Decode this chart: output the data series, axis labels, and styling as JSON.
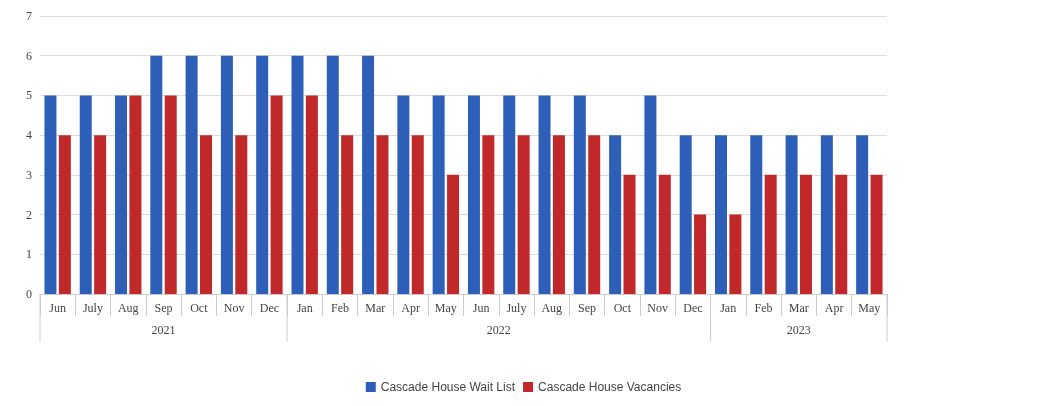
{
  "chart_data": {
    "type": "bar",
    "categories": [
      "Jun",
      "July",
      "Aug",
      "Sep",
      "Oct",
      "Nov",
      "Dec",
      "Jan",
      "Feb",
      "Mar",
      "Apr",
      "May",
      "Jun",
      "July",
      "Aug",
      "Sep",
      "Oct",
      "Nov",
      "Dec",
      "Jan",
      "Feb",
      "Mar",
      "Apr",
      "May"
    ],
    "series": [
      {
        "name": "Cascade House Wait List",
        "color": "#2e5fb8",
        "values": [
          5,
          5,
          5,
          6,
          6,
          6,
          6,
          6,
          6,
          6,
          5,
          5,
          5,
          5,
          5,
          5,
          4,
          5,
          4,
          4,
          4,
          4,
          4,
          4
        ]
      },
      {
        "name": "Cascade House Vacancies",
        "color": "#c0282a",
        "values": [
          4,
          4,
          5,
          5,
          4,
          4,
          5,
          5,
          4,
          4,
          4,
          3,
          4,
          4,
          4,
          4,
          3,
          3,
          2,
          2,
          3,
          3,
          3,
          3
        ]
      }
    ],
    "annotations": [
      "2021",
      "2022",
      "2023"
    ],
    "ylim": [
      0,
      7
    ],
    "yticks": [
      0,
      1,
      2,
      3,
      4,
      5,
      6,
      7
    ],
    "grid": "y",
    "legend": "bottom"
  }
}
